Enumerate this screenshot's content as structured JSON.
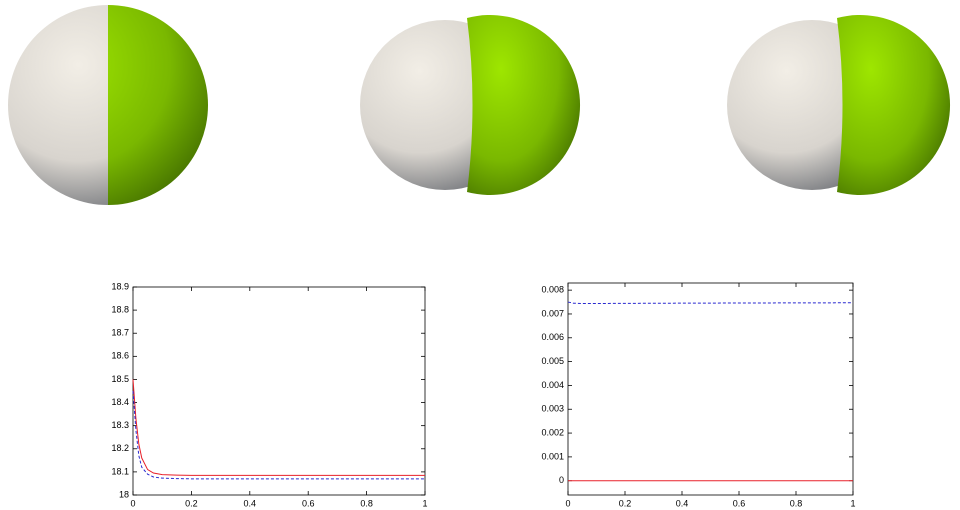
{
  "chart_data": [
    {
      "type": "line",
      "x": [
        0,
        0.01,
        0.02,
        0.03,
        0.05,
        0.07,
        0.1,
        0.15,
        0.2,
        0.3,
        0.5,
        0.7,
        1
      ],
      "series": [
        {
          "color": "#e8202a",
          "style": "solid",
          "values": [
            18.5,
            18.33,
            18.22,
            18.16,
            18.11,
            18.095,
            18.088,
            18.086,
            18.085,
            18.085,
            18.085,
            18.085,
            18.085
          ]
        },
        {
          "color": "#2a2ad0",
          "style": "dashed",
          "values": [
            18.45,
            18.28,
            18.17,
            18.12,
            18.09,
            18.078,
            18.073,
            18.071,
            18.07,
            18.07,
            18.07,
            18.07,
            18.07
          ]
        }
      ],
      "xlim": [
        0,
        1
      ],
      "xticks": [
        0,
        0.2,
        0.4,
        0.6,
        0.8,
        1
      ],
      "ylim": [
        18,
        18.9
      ],
      "yticks": [
        18,
        18.1,
        18.2,
        18.3,
        18.4,
        18.5,
        18.6,
        18.7,
        18.8,
        18.9
      ]
    },
    {
      "type": "line",
      "x": [
        0,
        0.02,
        0.05,
        0.1,
        0.3,
        0.6,
        1
      ],
      "series": [
        {
          "color": "#e8202a",
          "style": "solid",
          "values": [
            0,
            0,
            0,
            0,
            0,
            0,
            0
          ]
        },
        {
          "color": "#2a2ad0",
          "style": "dashed",
          "values": [
            0.0075,
            0.00745,
            0.00744,
            0.00744,
            0.00745,
            0.00746,
            0.00747
          ]
        }
      ],
      "xlim": [
        0,
        1
      ],
      "xticks": [
        0,
        0.2,
        0.4,
        0.6,
        0.8,
        1
      ],
      "ylim": [
        -0.0006,
        0.0083
      ],
      "yticks": [
        0,
        0.001,
        0.002,
        0.003,
        0.004,
        0.005,
        0.006,
        0.007,
        0.008
      ]
    }
  ]
}
